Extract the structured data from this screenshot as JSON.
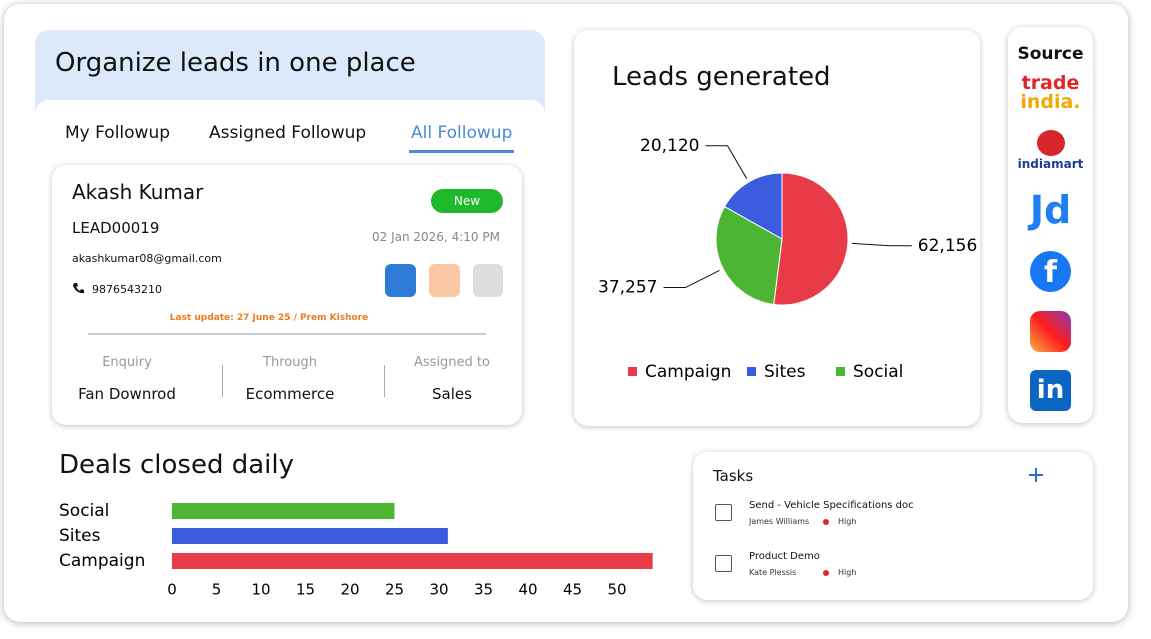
{
  "lead_panel": {
    "title": "Organize leads in one place",
    "tabs": [
      "My Followup",
      "Assigned Followup",
      "All Followup"
    ],
    "active_tab": 2,
    "card": {
      "name": "Akash Kumar",
      "id": "LEAD00019",
      "email": "akashkumar08@gmail.com",
      "phone": "9876543210",
      "status": "New",
      "date": "02 Jan 2026, 4:10 PM",
      "last_update": "Last update: 27 June 25 / Prem Kishore",
      "fields": [
        {
          "label": "Enquiry",
          "value": "Fan Downrod"
        },
        {
          "label": "Through",
          "value": "Ecommerce"
        },
        {
          "label": "Assigned to",
          "value": "Sales"
        }
      ]
    }
  },
  "sources": {
    "title": "Source",
    "tradeindia": [
      "trade",
      "india."
    ],
    "indiamart": "indiamart",
    "jd": "Jd",
    "facebook": "f",
    "linkedin": "in"
  },
  "tasks": {
    "title": "Tasks",
    "items": [
      {
        "name": "Send - Vehicle Specifications doc",
        "assignee": "James Williams",
        "priority": "High"
      },
      {
        "name": "Product Demo",
        "assignee": "Kate Plessis",
        "priority": "High"
      }
    ]
  },
  "chart_data": [
    {
      "type": "pie",
      "title": "Leads generated",
      "categories": [
        "Campaign",
        "Sites",
        "Social"
      ],
      "values": [
        62156,
        20120,
        37257
      ],
      "value_labels": [
        "62,156",
        "20,120",
        "37,257"
      ],
      "colors": [
        "#e83b47",
        "#3c5ce0",
        "#4cb534"
      ]
    },
    {
      "type": "hbar",
      "title": "Deals closed daily",
      "categories": [
        "Social",
        "Sites",
        "Campaign"
      ],
      "values": [
        25,
        31,
        54
      ],
      "colors": [
        "#4cb534",
        "#3c5ce0",
        "#e83b47"
      ],
      "xlim": [
        0,
        55
      ],
      "xticks": [
        0,
        5,
        10,
        15,
        20,
        25,
        30,
        35,
        40,
        45,
        50
      ]
    }
  ]
}
